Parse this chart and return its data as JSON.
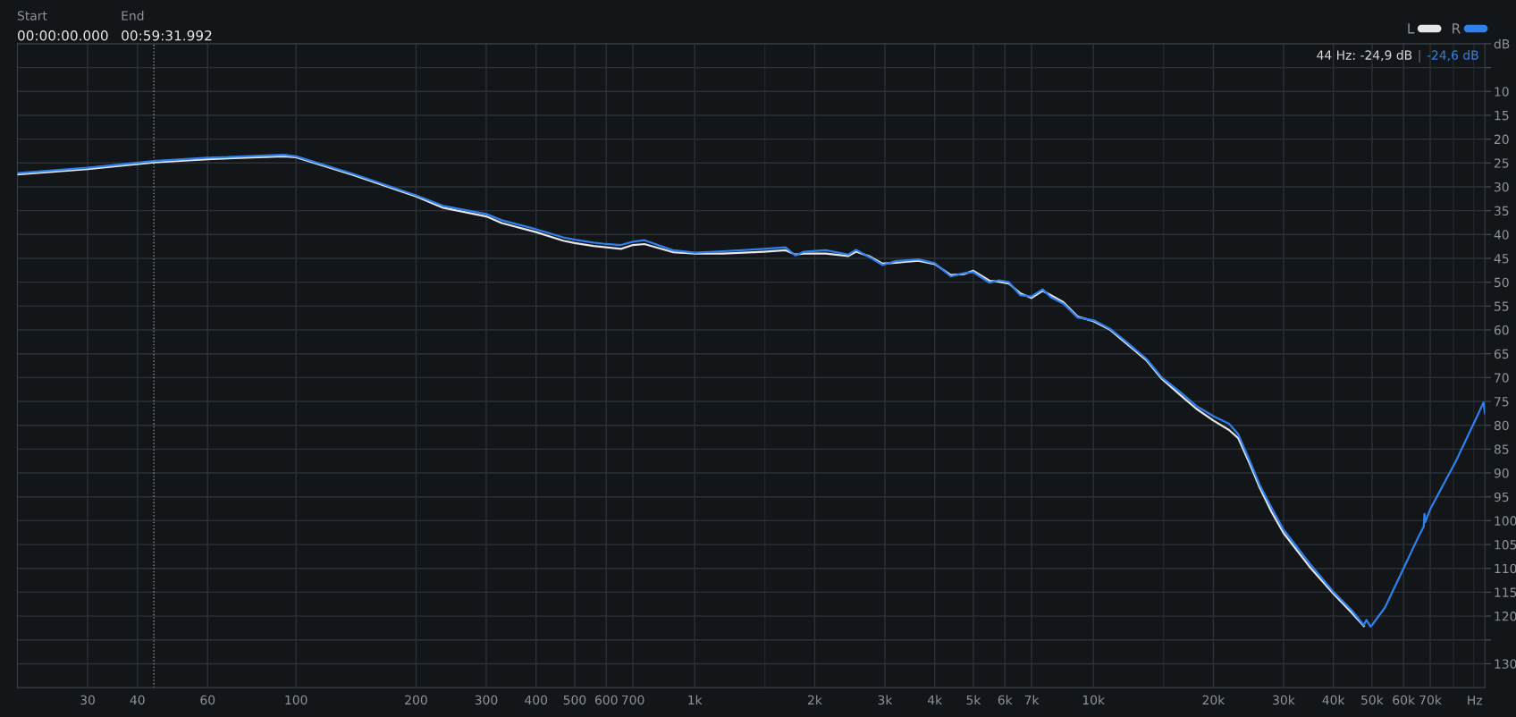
{
  "chart_data": {
    "type": "line",
    "x": [
      20,
      30,
      44,
      60,
      93,
      100,
      139,
      200,
      234,
      300,
      328,
      400,
      468,
      500,
      557,
      600,
      653,
      700,
      748,
      881,
      1000,
      1180,
      1490,
      1690,
      1790,
      1880,
      2130,
      2430,
      2540,
      2750,
      2960,
      3190,
      3640,
      4000,
      4390,
      4730,
      5000,
      5490,
      5800,
      6140,
      6550,
      6990,
      7460,
      7810,
      8410,
      9130,
      10030,
      10980,
      11930,
      13560,
      14870,
      16500,
      18100,
      20000,
      21900,
      23100,
      24750,
      26150,
      28000,
      30000,
      34900,
      40000,
      44600,
      47700,
      48400,
      49600,
      50000,
      53900,
      60000,
      65200,
      67400,
      67700,
      68000,
      70000,
      81200,
      91800,
      95200,
      96000
    ],
    "series": [
      {
        "name": "L",
        "color": "#e6e6e6",
        "values": [
          -27.4,
          -26.3,
          -24.9,
          -24.2,
          -23.6,
          -23.8,
          -27.5,
          -32,
          -34.4,
          -36.2,
          -37.6,
          -39.5,
          -41.3,
          -41.8,
          -42.4,
          -42.7,
          -43,
          -42.2,
          -42,
          -43.7,
          -44,
          -44,
          -43.6,
          -43.3,
          -44.2,
          -44,
          -44,
          -44.5,
          -43.6,
          -44.6,
          -46.1,
          -45.9,
          -45.5,
          -46.2,
          -48.5,
          -48.3,
          -47.6,
          -49.7,
          -49.9,
          -50.3,
          -52.3,
          -53.3,
          -51.8,
          -52.7,
          -54.2,
          -57.2,
          -58.2,
          -59.9,
          -62.4,
          -66.3,
          -70.3,
          -73.6,
          -76.5,
          -79,
          -81,
          -82.7,
          -88.3,
          -93.1,
          -98.2,
          -102.6,
          -109.7,
          -115.3,
          -119.4,
          -122.1,
          null,
          null,
          null,
          null,
          null,
          null,
          null,
          null,
          null,
          null,
          null,
          null,
          null,
          null
        ]
      },
      {
        "name": "R",
        "color": "#2f80ed",
        "values": [
          -27.1,
          -26,
          -24.6,
          -23.9,
          -23.3,
          -23.6,
          -27.3,
          -31.8,
          -34,
          -35.7,
          -37,
          -38.9,
          -40.6,
          -41.1,
          -41.7,
          -42,
          -42.2,
          -41.5,
          -41.2,
          -43.3,
          -43.8,
          -43.5,
          -43,
          -42.7,
          -44.4,
          -43.6,
          -43.3,
          -44.2,
          -43.2,
          -44.8,
          -46.4,
          -45.6,
          -45.2,
          -46,
          -48.8,
          -48.1,
          -47.9,
          -50.1,
          -49.6,
          -50,
          -52.7,
          -53,
          -51.5,
          -53.1,
          -54.5,
          -57.4,
          -58,
          -59.7,
          -62.1,
          -66,
          -70,
          -73,
          -75.9,
          -78.1,
          -79.7,
          -81.9,
          -87.7,
          -92.5,
          -97.3,
          -101.9,
          -109,
          -114.9,
          -118.9,
          -121.9,
          -120.8,
          -122.2,
          -121.9,
          -118.2,
          -110,
          -103.6,
          -101.3,
          -98.6,
          -100.3,
          -97.6,
          -87.5,
          -78.1,
          -75.2,
          -77.5
        ]
      }
    ],
    "xlabel": "Hz",
    "log": "x",
    "xlim": [
      20,
      96000
    ],
    "xticks": [
      30,
      40,
      60,
      100,
      200,
      300,
      400,
      500,
      600,
      700,
      {
        "value": 1000,
        "label": "1k"
      },
      {
        "value": 1500,
        "label": null
      },
      {
        "value": 2000,
        "label": "2k"
      },
      {
        "value": 3000,
        "label": "3k"
      },
      {
        "value": 4000,
        "label": "4k"
      },
      {
        "value": 5000,
        "label": "5k"
      },
      {
        "value": 6000,
        "label": "6k"
      },
      {
        "value": 7000,
        "label": "7k"
      },
      {
        "value": 10000,
        "label": "10k"
      },
      {
        "value": 15000,
        "label": null
      },
      {
        "value": 20000,
        "label": "20k"
      },
      {
        "value": 30000,
        "label": "30k"
      },
      {
        "value": 40000,
        "label": "40k"
      },
      {
        "value": 50000,
        "label": "50k"
      },
      {
        "value": 60000,
        "label": "60k"
      },
      {
        "value": 70000,
        "label": "70k"
      },
      {
        "value": 80000,
        "label": null
      },
      {
        "value": 90000,
        "label": null
      }
    ],
    "ylim": [
      -135,
      0
    ],
    "yticks": [
      {
        "value": 0,
        "label": "dB"
      },
      {
        "value": -5,
        "label": null
      },
      {
        "value": -10,
        "label": "10"
      },
      {
        "value": -15,
        "label": "15"
      },
      {
        "value": -20,
        "label": "20"
      },
      {
        "value": -25,
        "label": "25"
      },
      {
        "value": -30,
        "label": "30"
      },
      {
        "value": -35,
        "label": "35"
      },
      {
        "value": -40,
        "label": "40"
      },
      {
        "value": -45,
        "label": "45"
      },
      {
        "value": -50,
        "label": "50"
      },
      {
        "value": -55,
        "label": "55"
      },
      {
        "value": -60,
        "label": "60"
      },
      {
        "value": -65,
        "label": "65"
      },
      {
        "value": -70,
        "label": "70"
      },
      {
        "value": -75,
        "label": "75"
      },
      {
        "value": -80,
        "label": "80"
      },
      {
        "value": -85,
        "label": "85"
      },
      {
        "value": -90,
        "label": "90"
      },
      {
        "value": -95,
        "label": "95"
      },
      {
        "value": -100,
        "label": "100"
      },
      {
        "value": -105,
        "label": "105"
      },
      {
        "value": -110,
        "label": "110"
      },
      {
        "value": -115,
        "label": "115"
      },
      {
        "value": -120,
        "label": "120"
      },
      {
        "value": -125,
        "label": null
      },
      {
        "value": -130,
        "label": "130"
      }
    ],
    "grid": true,
    "legend": "top right",
    "marker": "none",
    "line_style": "solid",
    "ref_lines": [
      {
        "axis": "x",
        "value": 44,
        "color": "#8a8f96",
        "line_style": "dotted"
      }
    ],
    "annotations": [
      "Start",
      "00:00:00.000",
      "End",
      "00:59:31.992",
      "44 Hz: -24,9 dB",
      "|",
      "-24,6 dB"
    ]
  }
}
